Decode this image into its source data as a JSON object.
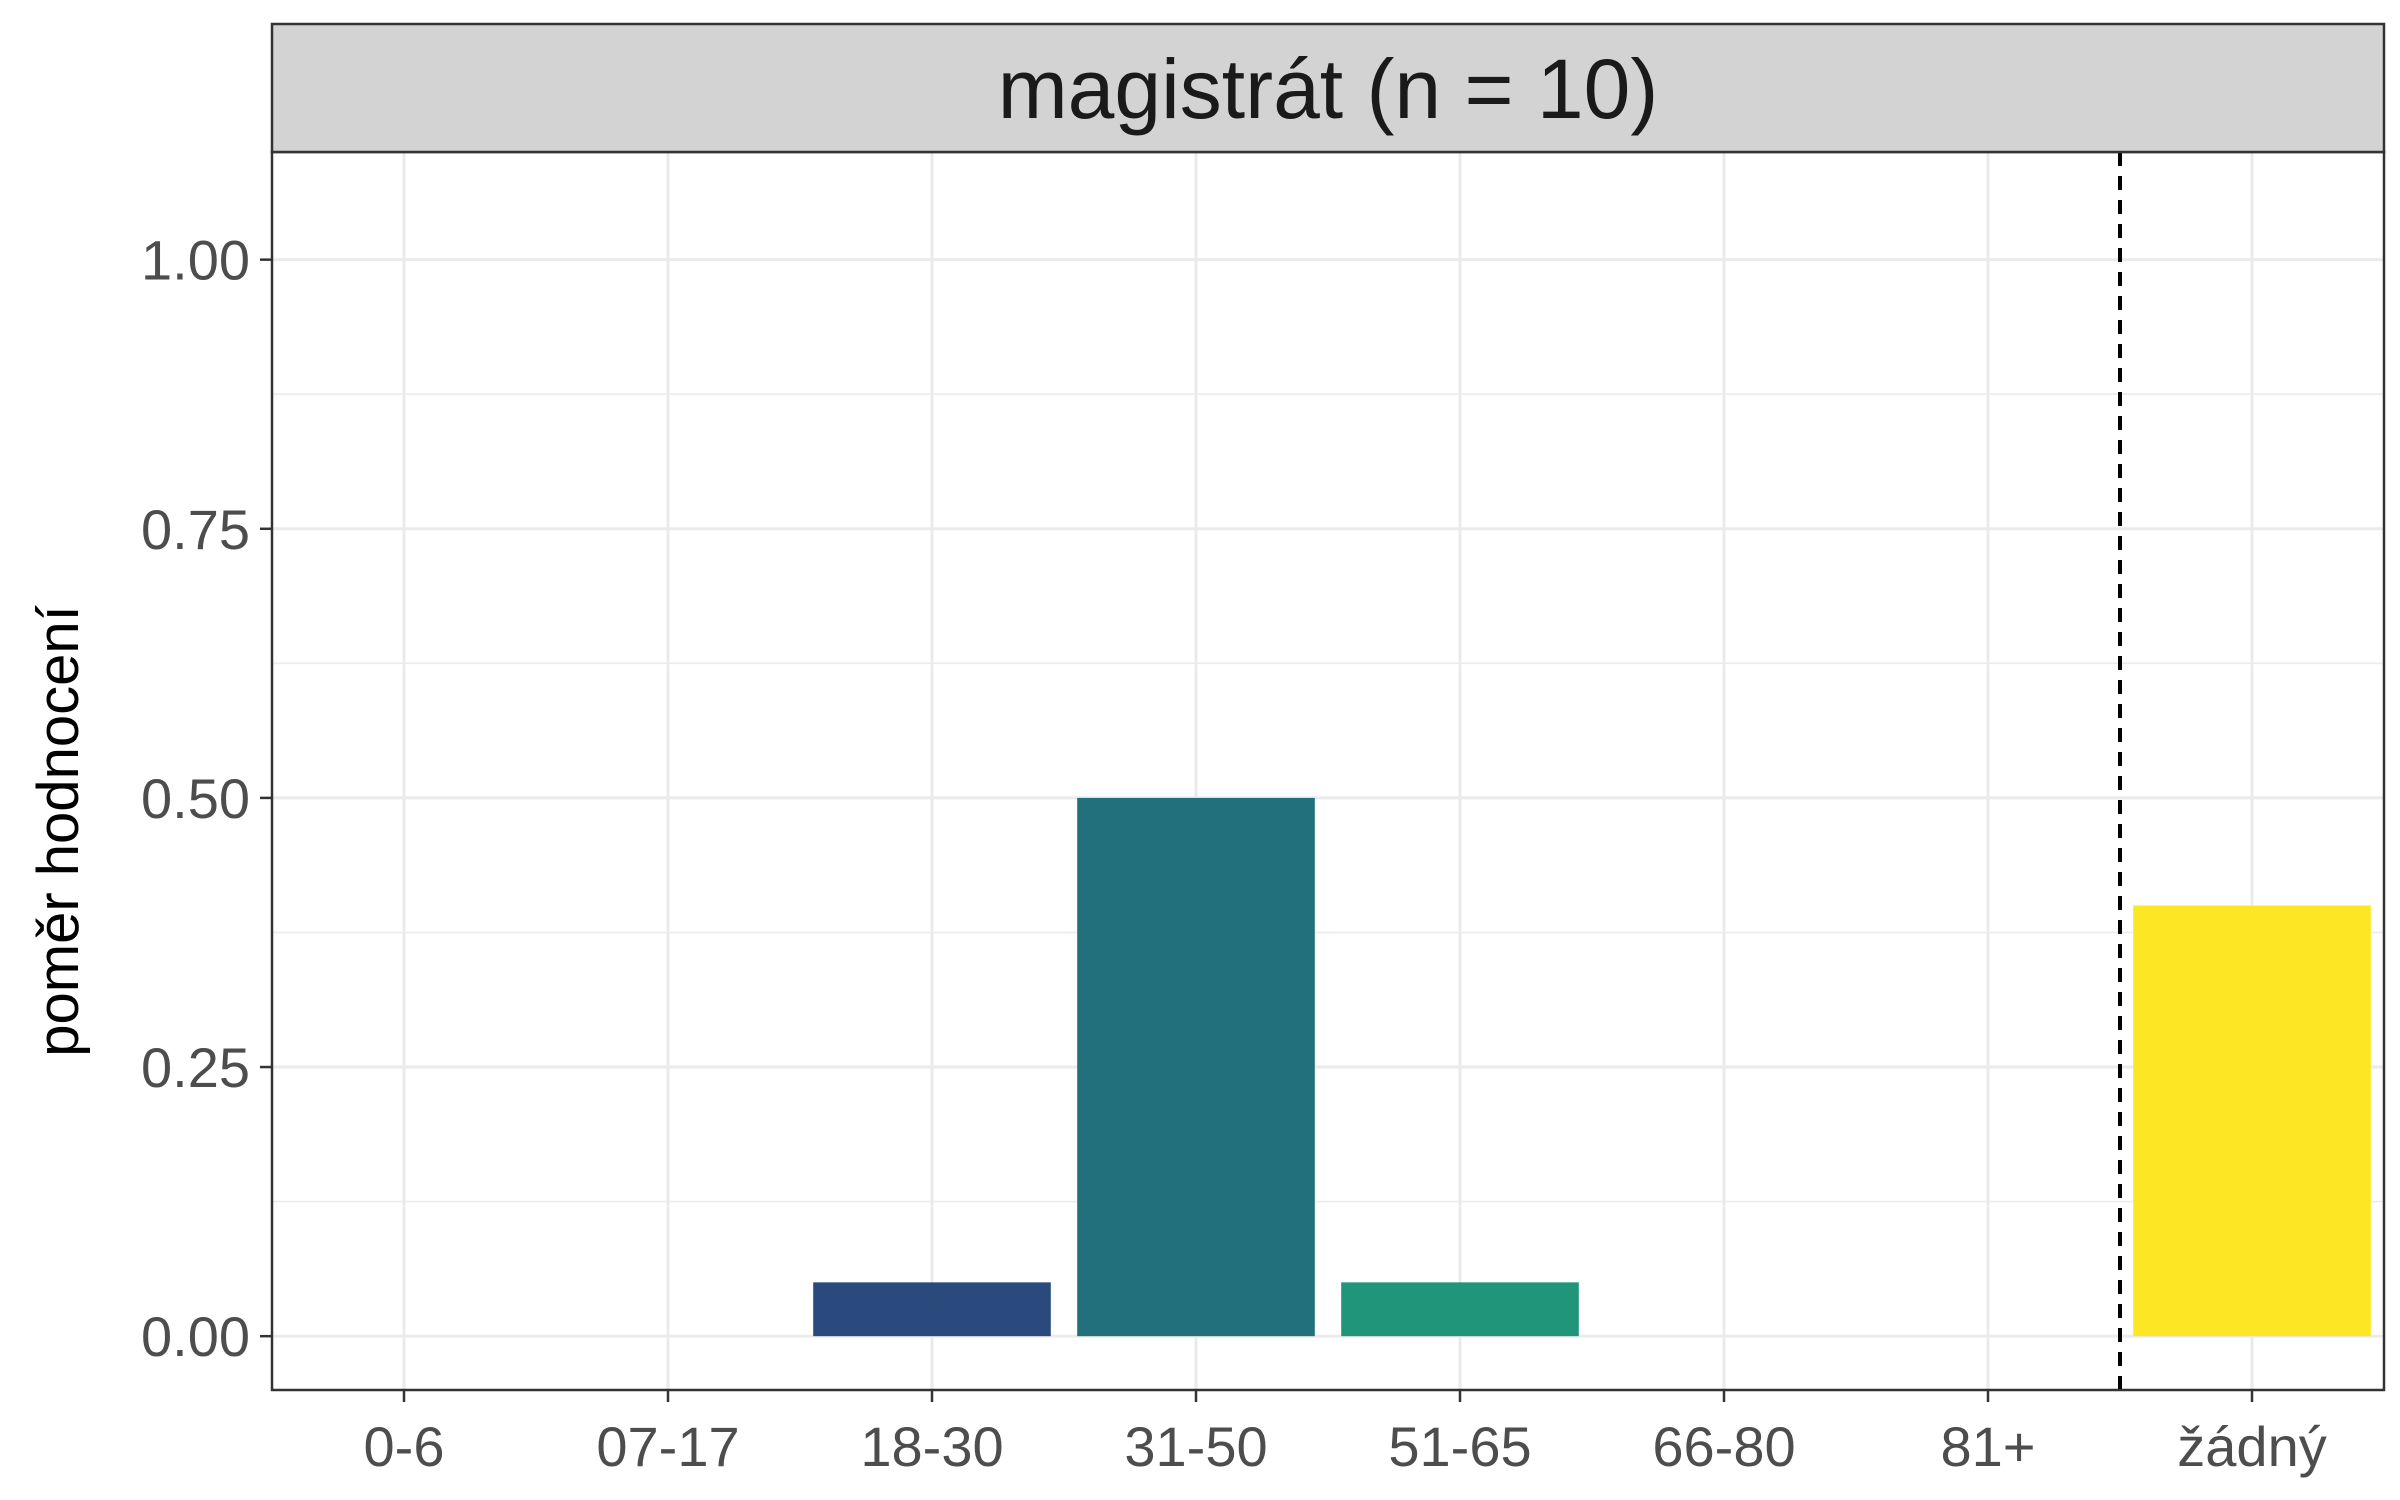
{
  "chart_data": {
    "type": "bar",
    "facet_title": "magistrát (n = 10)",
    "xlabel": "",
    "ylabel": "poměr hodnocení",
    "categories": [
      "0-6",
      "07-17",
      "18-30",
      "31-50",
      "51-65",
      "66-80",
      "81+",
      "žádný"
    ],
    "values": [
      0,
      0,
      0.05,
      0.5,
      0.05,
      0,
      0,
      0.4
    ],
    "colors": [
      "#440154",
      "#46337E",
      "#2A4A7E",
      "#21707C",
      "#20957A",
      "#52C569",
      "#AADC32",
      "#FDE725"
    ],
    "y_ticks": [
      "0.00",
      "0.25",
      "0.50",
      "0.75",
      "1.00"
    ],
    "y_tick_values": [
      0,
      0.25,
      0.5,
      0.75,
      1.0
    ],
    "ylim": [
      -0.05,
      1.1
    ],
    "grid": true,
    "legend": "none",
    "reference_line": {
      "between": [
        "81+",
        "žádný"
      ],
      "style": "dashed",
      "color": "#000000"
    },
    "strip_fill": "#d3d3d3"
  }
}
